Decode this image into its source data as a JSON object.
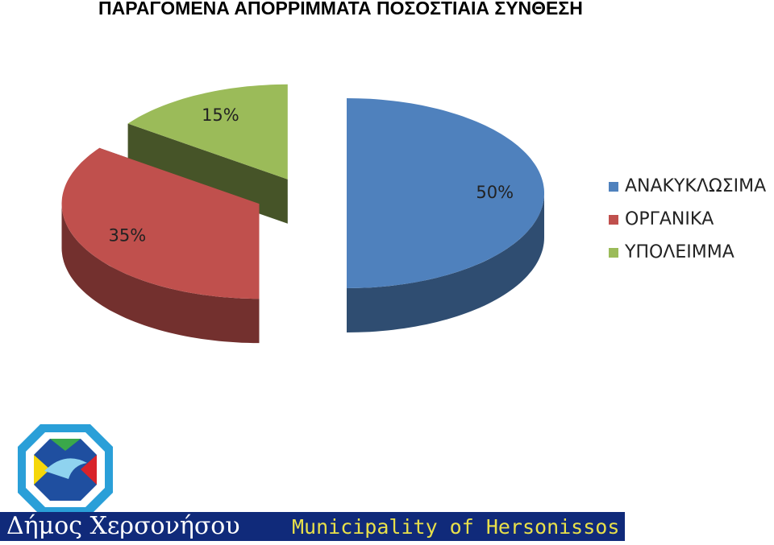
{
  "chart_data": {
    "type": "pie3d",
    "title": "ΠΑΡΑΓΟΜΕΝΑ ΑΠΟΡΡΙΜΜΑΤΑ ΠΟΣΟΣΤΙΑΙΑ ΣΥΝΘΕΣΗ",
    "categories": [
      "ΑΝΑΚΥΚΛΩΣΙΜΑ",
      "ΟΡΓΑΝΙΚΑ",
      "ΥΠΟΛΕΙΜΜΑ"
    ],
    "values": [
      50,
      35,
      15
    ],
    "value_labels": [
      "50%",
      "35%",
      "15%"
    ],
    "colors": [
      "#4f81bd",
      "#c0504d",
      "#9bbb59"
    ],
    "legend": "right"
  },
  "footer": {
    "greek": "Δήμος Χερσονήσου",
    "english": "Municipality of Hersonissos"
  }
}
